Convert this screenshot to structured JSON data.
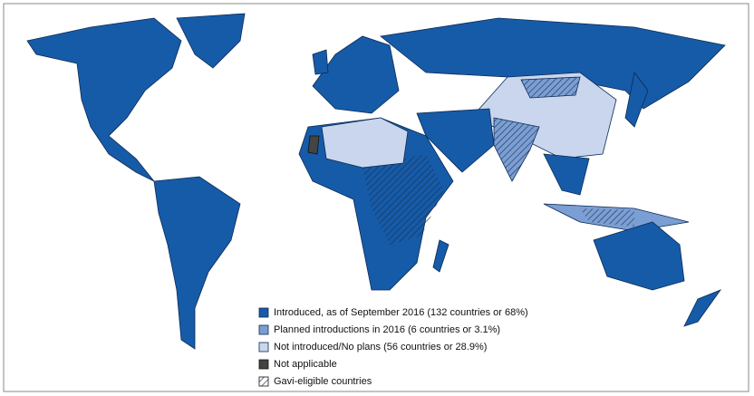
{
  "legend": {
    "items": [
      "Introduced, as of September 2016 (132 countries or 68%)",
      "Planned introductions in 2016 (6 countries or 3.1%)",
      "Not introduced/No plans (56 countries or 28.9%)",
      "Not applicable",
      "Gavi-eligible countries"
    ]
  }
}
